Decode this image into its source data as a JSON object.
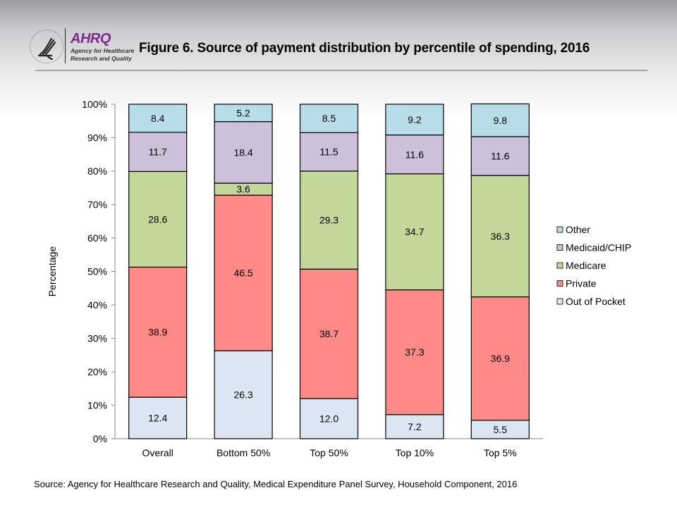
{
  "header": {
    "logo_agency_short": "AHRQ",
    "logo_line1": "Agency for Healthcare",
    "logo_line2": "Research and Quality",
    "hhs_seal_icon": "hhs-eagle-seal-icon"
  },
  "chart_data": {
    "type": "bar",
    "stacked": true,
    "title": "Figure 6. Source of payment distribution by percentile of spending, 2016",
    "xlabel": "",
    "ylabel": "Percentage",
    "ylim": [
      0,
      100
    ],
    "yticks": [
      "0%",
      "10%",
      "20%",
      "30%",
      "40%",
      "50%",
      "60%",
      "70%",
      "80%",
      "90%",
      "100%"
    ],
    "grid": false,
    "legend_position": "right",
    "categories": [
      "Overall",
      "Bottom 50%",
      "Top 50%",
      "Top 10%",
      "Top 5%"
    ],
    "series": [
      {
        "name": "Out of Pocket",
        "color": "#dce6f2",
        "values": [
          12.4,
          26.3,
          12.0,
          7.2,
          5.5
        ]
      },
      {
        "name": "Private",
        "color": "#ff8a87",
        "values": [
          38.9,
          46.5,
          38.7,
          37.3,
          36.9
        ]
      },
      {
        "name": "Medicare",
        "color": "#c4d79b",
        "values": [
          28.6,
          3.6,
          29.3,
          34.7,
          36.3
        ]
      },
      {
        "name": "Medicaid/CHIP",
        "color": "#ccc0da",
        "values": [
          11.7,
          18.4,
          11.5,
          11.6,
          11.6
        ]
      },
      {
        "name": "Other",
        "color": "#b7dee8",
        "values": [
          8.4,
          5.2,
          8.5,
          9.2,
          9.8
        ]
      }
    ],
    "legend_order": [
      "Other",
      "Medicaid/CHIP",
      "Medicare",
      "Private",
      "Out of Pocket"
    ]
  },
  "footer": {
    "source": "Source: Agency for Healthcare Research and Quality, Medical Expenditure Panel Survey, Household Component, 2016"
  }
}
